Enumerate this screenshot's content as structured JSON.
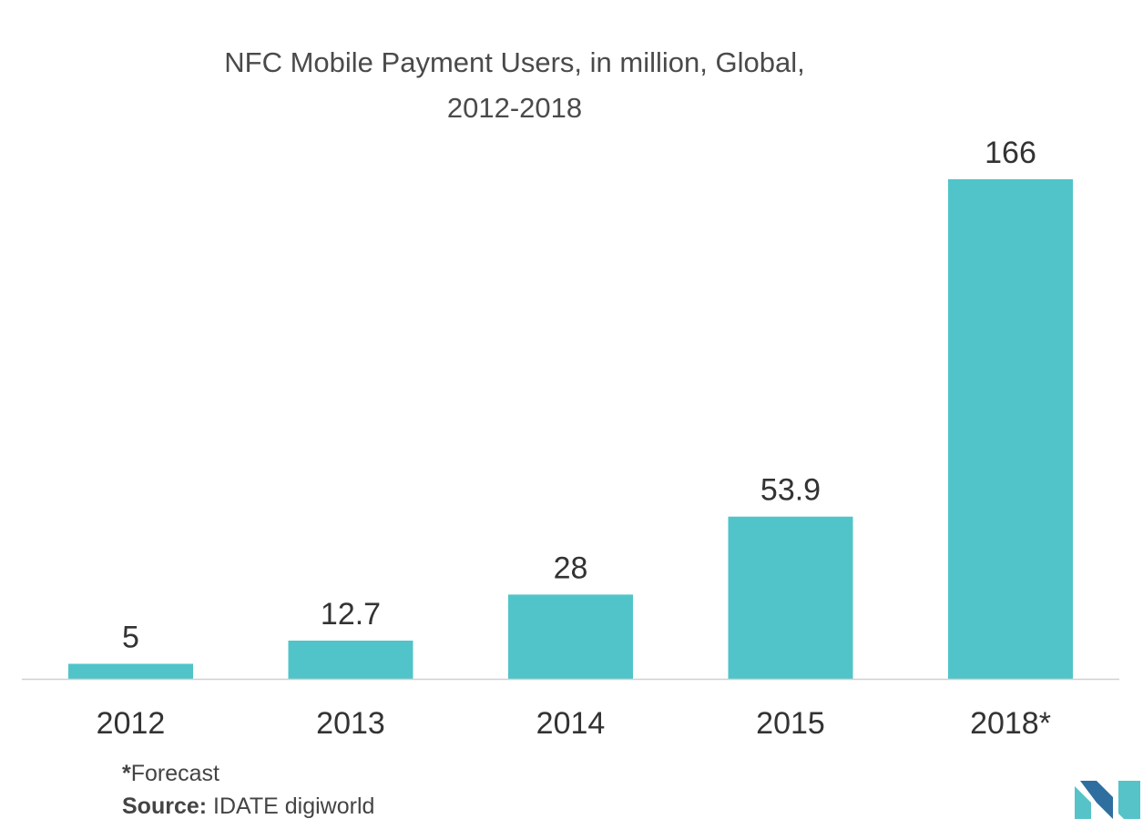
{
  "chart_data": {
    "type": "bar",
    "title_lines": [
      "NFC Mobile Payment Users, in million, Global,",
      "2012-2018"
    ],
    "categories": [
      "2012",
      "2013",
      "2014",
      "2015",
      "2018*"
    ],
    "values": [
      5,
      12.7,
      28,
      53.9,
      166
    ],
    "data_labels": [
      "5",
      "12.7",
      "28",
      "53.9",
      "166"
    ],
    "xlabel": "",
    "ylabel": "",
    "ylim": [
      0,
      166
    ],
    "grid": false,
    "legend": "none",
    "colors": {
      "bar": "#50C4C9",
      "baseline": "#d0d0d0",
      "label": "#333333"
    }
  },
  "footnote": {
    "forecast_marker": "*",
    "forecast_text": "Forecast",
    "source_label": "Source:",
    "source_text": "IDATE digiworld"
  },
  "logo": {
    "icon": "mordor-logo-icon",
    "colors": [
      "#2f6f9f",
      "#55c3c8"
    ]
  }
}
